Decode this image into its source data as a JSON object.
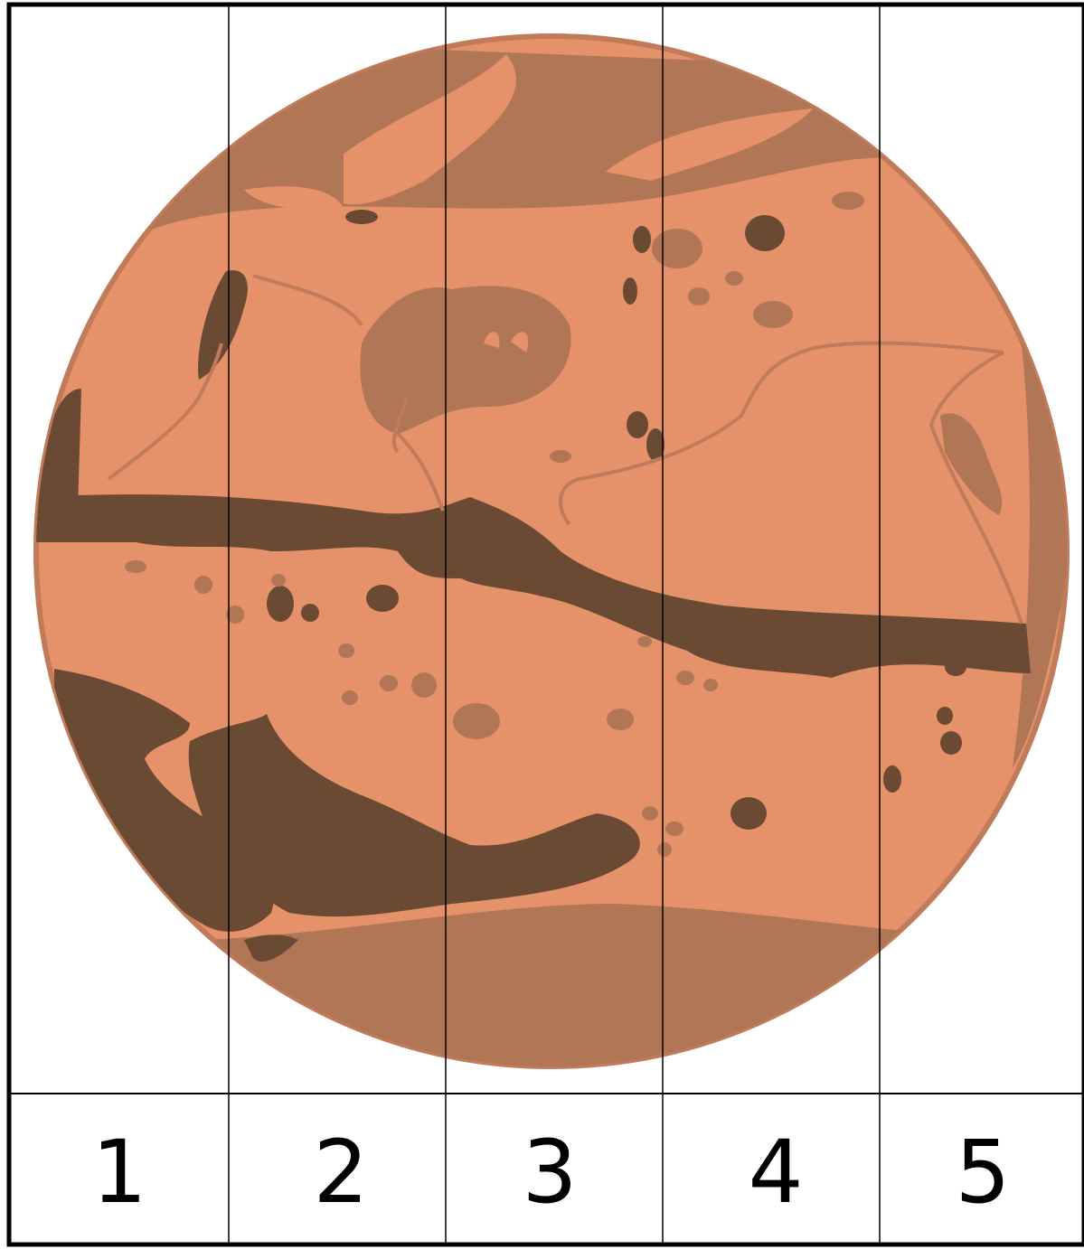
{
  "puzzle": {
    "strip_numbers": [
      "1",
      "2",
      "3",
      "4",
      "5"
    ]
  },
  "colors": {
    "planet_light": "#e5916a",
    "planet_mid": "#b07656",
    "planet_dark": "#6a4a32",
    "planet_outline": "#c07b5a",
    "grid_line": "#000000",
    "background": "#ffffff"
  },
  "illustration": {
    "subject": "mars-planet-icon"
  }
}
